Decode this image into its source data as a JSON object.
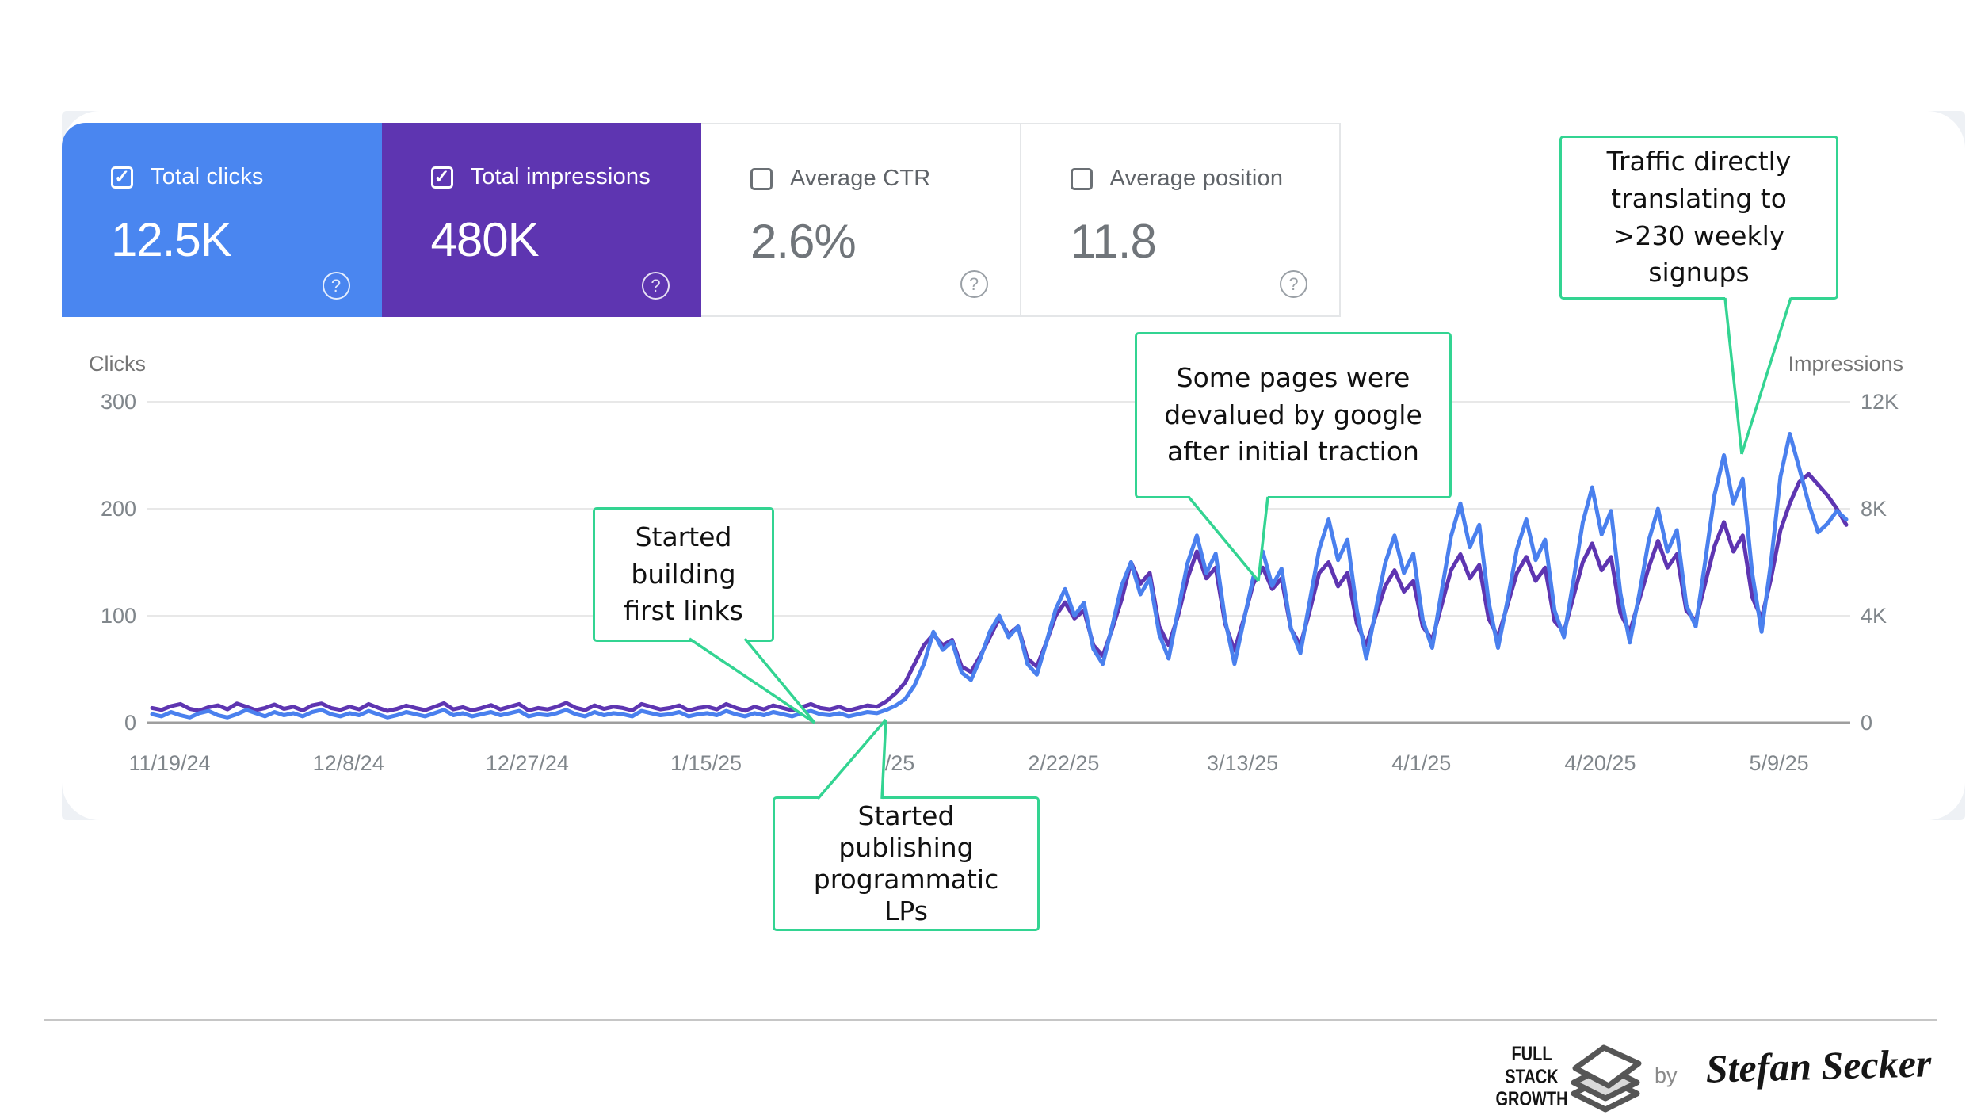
{
  "colors": {
    "card_blue": "#4a86f0",
    "card_purple": "#5e35b1",
    "clicks_line_blue": "#4a80ee",
    "impressions_line_purple": "#5e35b1",
    "annotation_green": "#33d492",
    "grid_gray": "#e8e8e8",
    "baseline_gray": "#9e9e9e",
    "tick_text_gray": "#80868b",
    "axis_title_gray": "#757575"
  },
  "cards": [
    {
      "label": "Total clicks",
      "value": "12.5K",
      "checked": true,
      "bg": "#4a86f0"
    },
    {
      "label": "Total impressions",
      "value": "480K",
      "checked": true,
      "bg": "#5e35b1"
    },
    {
      "label": "Average CTR",
      "value": "2.6%",
      "checked": false,
      "bg": "#ffffff"
    },
    {
      "label": "Average position",
      "value": "11.8",
      "checked": false,
      "bg": "#ffffff"
    }
  ],
  "help_icon_glyph": "?",
  "checkbox_glyph": "✓",
  "chart_data": {
    "type": "line",
    "ylabel_left": "Clicks",
    "ylabel_right": "Impressions",
    "y_ticks_clicks": [
      0,
      100,
      200,
      300
    ],
    "y_ticks_impressions_labels": [
      "0",
      "4K",
      "8K",
      "12K"
    ],
    "y_ticks_impressions_values_k": [
      0,
      4,
      8,
      12
    ],
    "ylim_clicks": [
      0,
      300
    ],
    "ylim_impressions_k": [
      0,
      12
    ],
    "grid": true,
    "legend_position": "none",
    "x_tick_labels": [
      "11/19/24",
      "12/8/24",
      "12/27/24",
      "1/15/25",
      "2/3/25",
      "2/22/25",
      "3/13/25",
      "4/1/25",
      "4/20/25",
      "5/9/25"
    ],
    "x_tick_days": [
      0,
      19,
      38,
      57,
      76,
      95,
      114,
      133,
      152,
      171
    ],
    "x_unit": "day index from 11/19/24, daily points",
    "series": [
      {
        "name": "Clicks",
        "axis": "left",
        "color": "#4a80ee",
        "values": [
          8,
          6,
          10,
          7,
          5,
          9,
          11,
          7,
          5,
          8,
          12,
          9,
          6,
          10,
          7,
          9,
          6,
          10,
          12,
          8,
          6,
          9,
          7,
          11,
          8,
          5,
          7,
          10,
          8,
          6,
          9,
          12,
          7,
          9,
          6,
          8,
          10,
          7,
          9,
          11,
          6,
          8,
          7,
          9,
          12,
          8,
          6,
          10,
          7,
          9,
          8,
          6,
          11,
          9,
          7,
          8,
          10,
          6,
          8,
          9,
          7,
          11,
          8,
          6,
          9,
          7,
          10,
          8,
          6,
          9,
          11,
          8,
          7,
          9,
          6,
          8,
          10,
          9,
          12,
          16,
          22,
          35,
          55,
          85,
          68,
          76,
          47,
          40,
          60,
          85,
          100,
          80,
          90,
          55,
          45,
          75,
          106,
          125,
          100,
          112,
          69,
          55,
          90,
          128,
          150,
          120,
          135,
          83,
          60,
          105,
          149,
          175,
          140,
          158,
          96,
          55,
          96,
          136,
          160,
          128,
          144,
          88,
          65,
          114,
          162,
          190,
          152,
          171,
          105,
          60,
          105,
          149,
          175,
          140,
          158,
          96,
          70,
          123,
          174,
          205,
          164,
          185,
          113,
          70,
          114,
          162,
          190,
          152,
          171,
          105,
          80,
          132,
          187,
          220,
          176,
          198,
          121,
          75,
          120,
          170,
          200,
          160,
          180,
          110,
          90,
          150,
          213,
          250,
          205,
          228,
          140,
          85,
          150,
          230,
          270,
          238,
          205,
          178,
          186,
          198,
          190
        ]
      },
      {
        "name": "Impressions",
        "axis": "right",
        "unit": "K",
        "color": "#5e35b1",
        "values": [
          0.55,
          0.48,
          0.62,
          0.7,
          0.52,
          0.45,
          0.58,
          0.65,
          0.5,
          0.72,
          0.6,
          0.47,
          0.55,
          0.68,
          0.52,
          0.6,
          0.46,
          0.65,
          0.72,
          0.55,
          0.48,
          0.6,
          0.5,
          0.7,
          0.56,
          0.44,
          0.52,
          0.64,
          0.55,
          0.47,
          0.6,
          0.73,
          0.5,
          0.58,
          0.46,
          0.55,
          0.66,
          0.5,
          0.6,
          0.7,
          0.46,
          0.55,
          0.5,
          0.6,
          0.74,
          0.56,
          0.47,
          0.65,
          0.52,
          0.6,
          0.55,
          0.46,
          0.7,
          0.6,
          0.5,
          0.55,
          0.65,
          0.46,
          0.55,
          0.6,
          0.5,
          0.7,
          0.56,
          0.45,
          0.6,
          0.5,
          0.65,
          0.55,
          0.46,
          0.58,
          0.7,
          0.55,
          0.5,
          0.6,
          0.46,
          0.55,
          0.65,
          0.6,
          0.8,
          1.1,
          1.5,
          2.2,
          2.9,
          3.3,
          2.9,
          3.1,
          2.1,
          1.9,
          2.5,
          3.2,
          3.9,
          3.3,
          3.6,
          2.4,
          2.1,
          3,
          4,
          4.5,
          3.9,
          4.2,
          2.9,
          2.5,
          3.5,
          4.6,
          6,
          5.2,
          5.6,
          3.6,
          2.9,
          4,
          5.4,
          6.4,
          5.4,
          5.8,
          3.7,
          2.7,
          3.9,
          5.2,
          5.8,
          5,
          5.4,
          3.5,
          2.9,
          4.2,
          5.6,
          6,
          5.1,
          5.6,
          3.7,
          2.9,
          4,
          5.1,
          5.7,
          4.9,
          5.3,
          3.6,
          3.1,
          4.4,
          5.7,
          6.3,
          5.4,
          5.9,
          3.9,
          3.2,
          4.4,
          5.6,
          6.2,
          5.3,
          5.8,
          3.8,
          3.4,
          4.7,
          6,
          6.7,
          5.7,
          6.2,
          4.1,
          3.4,
          4.6,
          5.8,
          6.8,
          5.8,
          6.3,
          4.2,
          3.8,
          5.2,
          6.6,
          7.5,
          6.4,
          7,
          4.7,
          3.9,
          5.4,
          7.2,
          8.2,
          9,
          9.3,
          8.9,
          8.5,
          8,
          7.4
        ]
      }
    ]
  },
  "annotations": [
    {
      "text": "Started\nbuilding\nfirst links"
    },
    {
      "text": "Started\npublishing\nprogrammatic\nLPs"
    },
    {
      "text": "Some pages were\ndevalued by google\nafter initial traction"
    },
    {
      "text": "Traffic directly\ntranslating to\n>230 weekly\nsignups"
    }
  ],
  "footer": {
    "brand_lines": [
      "FULL",
      "STACK",
      "GROWTH"
    ],
    "by": "by",
    "author": "Stefan Secker"
  }
}
